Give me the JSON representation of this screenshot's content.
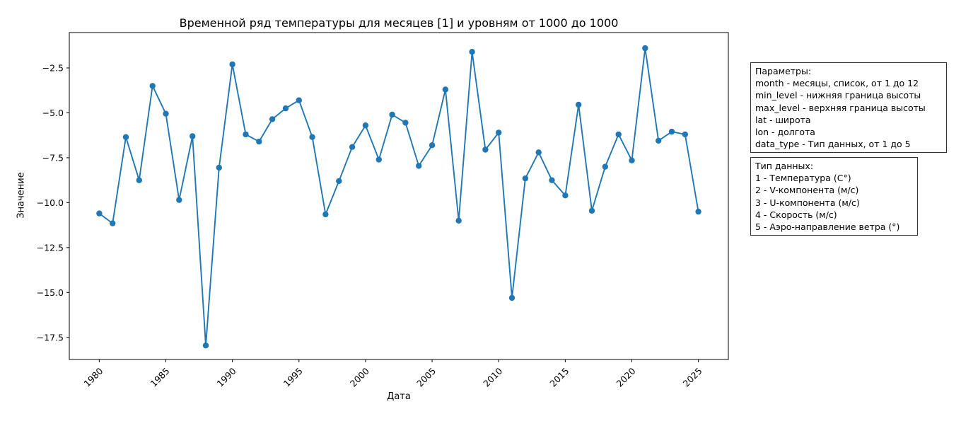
{
  "figure": {
    "background": "#ffffff",
    "box_border_color": "#333333"
  },
  "chart_data": {
    "type": "line",
    "title": "Временной ряд температуры для месяцев [1] и уровням от 1000 до 1000",
    "xlabel": "Дата",
    "ylabel": "Значение",
    "x": [
      1980,
      1981,
      1982,
      1983,
      1984,
      1985,
      1986,
      1987,
      1988,
      1989,
      1990,
      1991,
      1992,
      1993,
      1994,
      1995,
      1996,
      1997,
      1998,
      1999,
      2000,
      2001,
      2002,
      2003,
      2004,
      2005,
      2006,
      2007,
      2008,
      2009,
      2010,
      2011,
      2012,
      2013,
      2014,
      2015,
      2016,
      2017,
      2018,
      2019,
      2020,
      2021,
      2022,
      2023,
      2024,
      2025
    ],
    "series": [
      {
        "name": "Температура",
        "values": [
          -10.6,
          -11.15,
          -6.35,
          -8.75,
          -3.5,
          -5.05,
          -9.85,
          -6.3,
          -17.95,
          -8.05,
          -2.3,
          -6.2,
          -6.6,
          -5.35,
          -4.75,
          -4.3,
          -6.35,
          -10.65,
          -8.8,
          -6.9,
          -5.7,
          -7.6,
          -5.1,
          -5.55,
          -7.95,
          -6.8,
          -3.7,
          -11.0,
          -1.6,
          -7.05,
          -6.1,
          -15.3,
          -8.65,
          -7.2,
          -8.75,
          -9.6,
          -4.55,
          -10.45,
          -8.0,
          -6.2,
          -7.65,
          -1.4,
          -6.55,
          -6.05,
          -6.2,
          -10.5
        ]
      }
    ],
    "xticks": [
      1980,
      1985,
      1990,
      1995,
      2000,
      2005,
      2010,
      2015,
      2020,
      2025
    ],
    "yticks": [
      -2.5,
      -5.0,
      -7.5,
      -10.0,
      -12.5,
      -15.0,
      -17.5
    ],
    "xlim": [
      1977.75,
      2027.25
    ],
    "ylim": [
      -18.73,
      -0.53
    ],
    "x_tick_rotation": 45,
    "grid": false,
    "legend": null,
    "line_color": "#1f77b4",
    "marker": "circle"
  },
  "info_boxes": {
    "parameters": {
      "lines": [
        "Параметры:",
        "month - месяцы, список, от 1 до 12",
        "min_level - нижняя граница высоты",
        "max_level - верхняя граница высоты",
        "lat - широта",
        "lon - долгота",
        "data_type - Тип данных, от 1 до 5"
      ]
    },
    "data_types": {
      "lines": [
        "Тип данных:",
        "1 - Температура (C°)",
        "2 - V-компонента (м/с)",
        "3 - U-компонента (м/с)",
        "4 - Скорость (м/с)",
        "5 - Аэро-направление ветра (°)"
      ]
    }
  }
}
